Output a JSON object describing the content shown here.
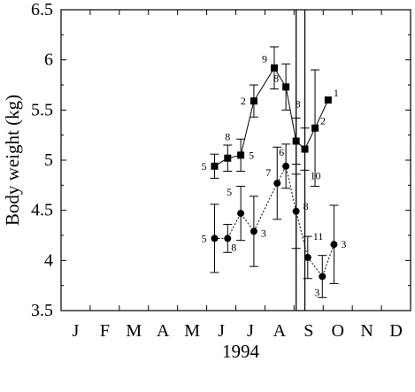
{
  "chart_data": {
    "type": "line",
    "xlabel": "1994",
    "ylabel": "Body weight (kg)",
    "ylim": [
      3.5,
      6.5
    ],
    "y_ticks": [
      "3.5",
      "4",
      "4.5",
      "5",
      "5.5",
      "6",
      "6.5"
    ],
    "months": [
      "J",
      "F",
      "M",
      "A",
      "M",
      "J",
      "J",
      "A",
      "S",
      "O",
      "N",
      "D"
    ],
    "grid": false,
    "vertical_markers": [
      7.57,
      7.87
    ],
    "series": [
      {
        "marker": "square",
        "line": "solid",
        "points": [
          {
            "x": 4.77,
            "y": 4.94,
            "err": 0.12,
            "n": "5"
          },
          {
            "x": 5.22,
            "y": 5.02,
            "err": 0.13,
            "n": "8"
          },
          {
            "x": 5.67,
            "y": 5.05,
            "err": 0.16,
            "n": "5"
          },
          {
            "x": 6.12,
            "y": 5.59,
            "err": 0.16,
            "n": "2"
          },
          {
            "x": 6.82,
            "y": 5.92,
            "err": 0.21,
            "n": "9"
          },
          {
            "x": 7.22,
            "y": 5.73,
            "err": 0.23,
            "n": "8"
          },
          {
            "x": 7.57,
            "y": 5.19,
            "err": 0.23,
            "n": "8"
          },
          {
            "x": 7.87,
            "y": 5.11,
            "err": 0.21,
            "n": "10"
          },
          {
            "x": 8.22,
            "y": 5.32,
            "err": 0.58,
            "n": "2"
          },
          {
            "x": 8.67,
            "y": 5.6,
            "err": 0.0,
            "n": "1"
          }
        ]
      },
      {
        "marker": "circle",
        "line": "dashed",
        "points": [
          {
            "x": 4.77,
            "y": 4.22,
            "err": 0.34,
            "n": "5"
          },
          {
            "x": 5.22,
            "y": 4.22,
            "err": 0.14,
            "n": "8"
          },
          {
            "x": 5.67,
            "y": 4.47,
            "err": 0.27,
            "n": "5"
          },
          {
            "x": 6.12,
            "y": 4.29,
            "err": 0.35,
            "n": "3"
          },
          {
            "x": 6.92,
            "y": 4.77,
            "err": 0.36,
            "n": "7"
          },
          {
            "x": 7.22,
            "y": 4.94,
            "err": 0.22,
            "n": "6"
          },
          {
            "x": 7.57,
            "y": 4.49,
            "err": 0.37,
            "n": "8"
          },
          {
            "x": 7.97,
            "y": 4.03,
            "err": 0.21,
            "n": "11"
          },
          {
            "x": 8.47,
            "y": 3.84,
            "err": 0.21,
            "n": "3"
          },
          {
            "x": 8.87,
            "y": 4.16,
            "err": 0.39,
            "n": "3"
          }
        ]
      }
    ]
  }
}
